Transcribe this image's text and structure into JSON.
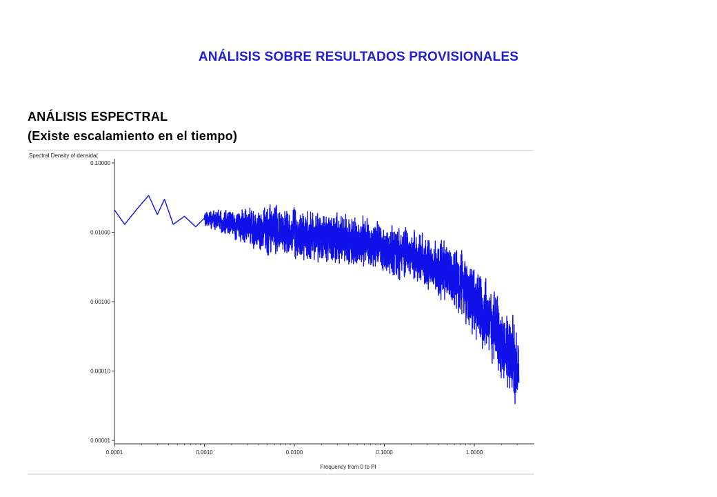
{
  "slide": {
    "title": "ANÁLISIS SOBRE RESULTADOS PROVISIONALES",
    "heading_line1": "ANÁLISIS ESPECTRAL",
    "heading_line2": "(Existe escalamiento en el tiempo)"
  },
  "chart_data": {
    "type": "line",
    "ylabel": "Spectral Density of densida(",
    "xlabel": "Frequency from 0 to PI",
    "x_scale": "log",
    "y_scale": "log",
    "xlim": [
      0.0001,
      3.14159
    ],
    "ylim": [
      1e-05,
      0.1
    ],
    "x_ticks": [
      "0.0001",
      "0.0010",
      "0.0100",
      "0.1000",
      "1.0000"
    ],
    "x_tick_values": [
      0.0001,
      0.001,
      0.01,
      0.1,
      1.0
    ],
    "y_ticks": [
      "0.10000",
      "0.01000",
      "0.00100",
      "0.00010",
      "0.00001"
    ],
    "y_tick_values": [
      0.1,
      0.01,
      0.001,
      0.0001,
      1e-05
    ],
    "grid": false,
    "line_color": "#1010e8",
    "series": [
      {
        "trend_x": [
          0.0001,
          0.00013,
          0.00018,
          0.00024,
          0.0003,
          0.00036,
          0.00045,
          0.0006,
          0.0008,
          0.001,
          0.0013,
          0.002,
          0.003,
          0.005,
          0.01,
          0.02,
          0.04,
          0.07,
          0.1,
          0.15,
          0.2,
          0.3,
          0.45,
          0.6,
          0.8,
          1.0,
          1.3,
          1.7,
          2.2,
          2.7,
          3.14
        ],
        "trend_y": [
          0.021,
          0.013,
          0.022,
          0.034,
          0.018,
          0.03,
          0.013,
          0.017,
          0.012,
          0.016,
          0.015,
          0.013,
          0.012,
          0.011,
          0.0095,
          0.0085,
          0.0075,
          0.0065,
          0.0058,
          0.005,
          0.0045,
          0.0036,
          0.0027,
          0.0021,
          0.0015,
          0.0011,
          0.0007,
          0.0004,
          0.00023,
          0.00015,
          0.00012
        ]
      }
    ]
  }
}
